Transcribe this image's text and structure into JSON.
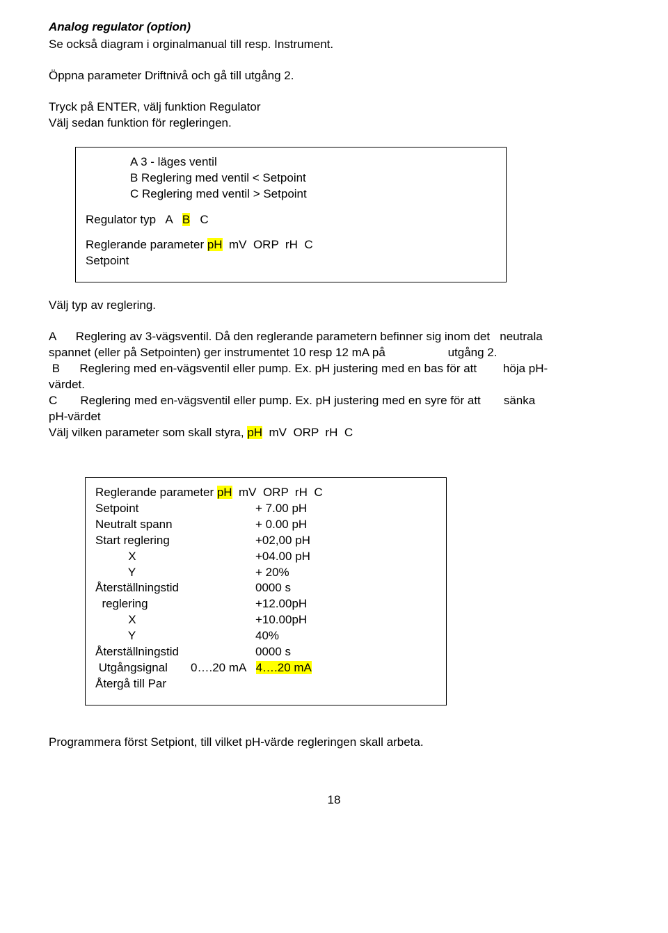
{
  "title": "Analog regulator (option)",
  "intro1": "Se också diagram i orginalmanual till resp. Instrument.",
  "intro2": "Öppna parameter Driftnivå och gå till utgång 2.",
  "intro3a": "Tryck på ENTER, välj funktion Regulator",
  "intro3b": "Välj sedan funktion för regleringen.",
  "box1": {
    "a": "A  3 - läges ventil",
    "b": "B   Reglering med ventil <  Setpoint",
    "c": "C   Reglering med ventil  > Setpoint",
    "regType_pre": "Regulator typ   A   ",
    "regType_b": "B",
    "regType_post": "   C",
    "regParam_pre": "Reglerande parameter ",
    "regParam_hl": "pH",
    "regParam_post": "  mV  ORP  rH  C",
    "setpoint": "Setpoint"
  },
  "mid1": "Välj typ av reglering.",
  "desc": {
    "a_pre": "A      Reglering av 3-vägsventil. Då den reglerande parametern befinner sig inom det   ",
    "a_right": "neutrala",
    "a_line2": "spannet (eller på Setpointen) ger instrumentet 10 resp 12 mA på                   utgång 2.",
    "b_pre": " B      Reglering med en-vägsventil eller pump. Ex. pH justering med en bas för att        ",
    "b_right": "höja pH-",
    "b_line2": "värdet.",
    "c_pre": "C       Reglering med en-vägsventil eller pump. Ex. pH justering med en syre för att       ",
    "c_right": "sänka",
    "c_line2": "pH-värdet",
    "choose_pre": "Välj vilken parameter som skall styra, ",
    "choose_hl": "pH",
    "choose_post": "  mV  ORP  rH  C"
  },
  "box2": {
    "l1_pre": "Reglerande parameter ",
    "l1_hl": "pH",
    "l1_post": "  mV  ORP  rH  C",
    "rows": [
      [
        "Setpoint",
        "+ 7.00 pH"
      ],
      [
        "Neutralt spann",
        "+ 0.00 pH"
      ],
      [
        "Start reglering",
        "+02,00 pH"
      ],
      [
        "          X",
        "+04.00 pH"
      ],
      [
        "          Y",
        "+ 20%"
      ],
      [
        "Återställningstid",
        "0000 s"
      ],
      [
        "  reglering",
        "+12.00pH"
      ],
      [
        "          X",
        "+10.00pH"
      ],
      [
        "          Y",
        "40%"
      ],
      [
        "Återställningstid",
        "0000 s"
      ]
    ],
    "out_label": " Utgångsignal       ",
    "out_opt1": "0….20 mA",
    "out_gap": "   ",
    "out_opt2": "4….20 mA",
    "back": " Återgå till Par"
  },
  "end": "Programmera först Setpiont, till vilket pH-värde regleringen skall arbeta.",
  "page": "18"
}
